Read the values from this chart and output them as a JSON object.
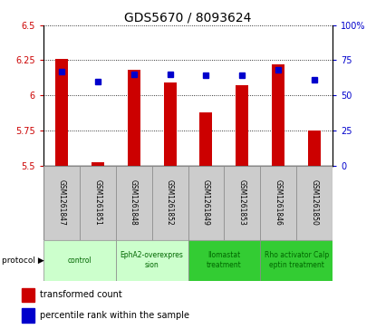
{
  "title": "GDS5670 / 8093624",
  "samples": [
    "GSM1261847",
    "GSM1261851",
    "GSM1261848",
    "GSM1261852",
    "GSM1261849",
    "GSM1261853",
    "GSM1261846",
    "GSM1261850"
  ],
  "transformed_counts": [
    6.26,
    5.52,
    6.18,
    6.09,
    5.88,
    6.07,
    6.22,
    5.75
  ],
  "percentile_ranks": [
    67,
    60,
    65,
    65,
    64,
    64,
    68,
    61
  ],
  "ylim_left": [
    5.5,
    6.5
  ],
  "ylim_right": [
    0,
    100
  ],
  "yticks_left": [
    5.5,
    5.75,
    6.0,
    6.25,
    6.5
  ],
  "yticks_right": [
    0,
    25,
    50,
    75,
    100
  ],
  "ytick_labels_left": [
    "5.5",
    "5.75",
    "6",
    "6.25",
    "6.5"
  ],
  "ytick_labels_right": [
    "0",
    "25",
    "50",
    "75",
    "100%"
  ],
  "protocols": [
    {
      "label": "control",
      "samples": [
        0,
        1
      ],
      "color": "#ccffcc",
      "text_color": "#006600"
    },
    {
      "label": "EphA2-overexpres\nsion",
      "samples": [
        2,
        3
      ],
      "color": "#ccffcc",
      "text_color": "#006600"
    },
    {
      "label": "Ilomastat\ntreatment",
      "samples": [
        4,
        5
      ],
      "color": "#33cc33",
      "text_color": "#006600"
    },
    {
      "label": "Rho activator Calp\neptin treatment",
      "samples": [
        6,
        7
      ],
      "color": "#33cc33",
      "text_color": "#006600"
    }
  ],
  "bar_color": "#cc0000",
  "dot_color": "#0000cc",
  "bar_width": 0.35,
  "baseline": 5.5,
  "gridline_color": "#000000",
  "background_color": "#ffffff",
  "sample_bg_color": "#cccccc",
  "sample_border_color": "#888888"
}
